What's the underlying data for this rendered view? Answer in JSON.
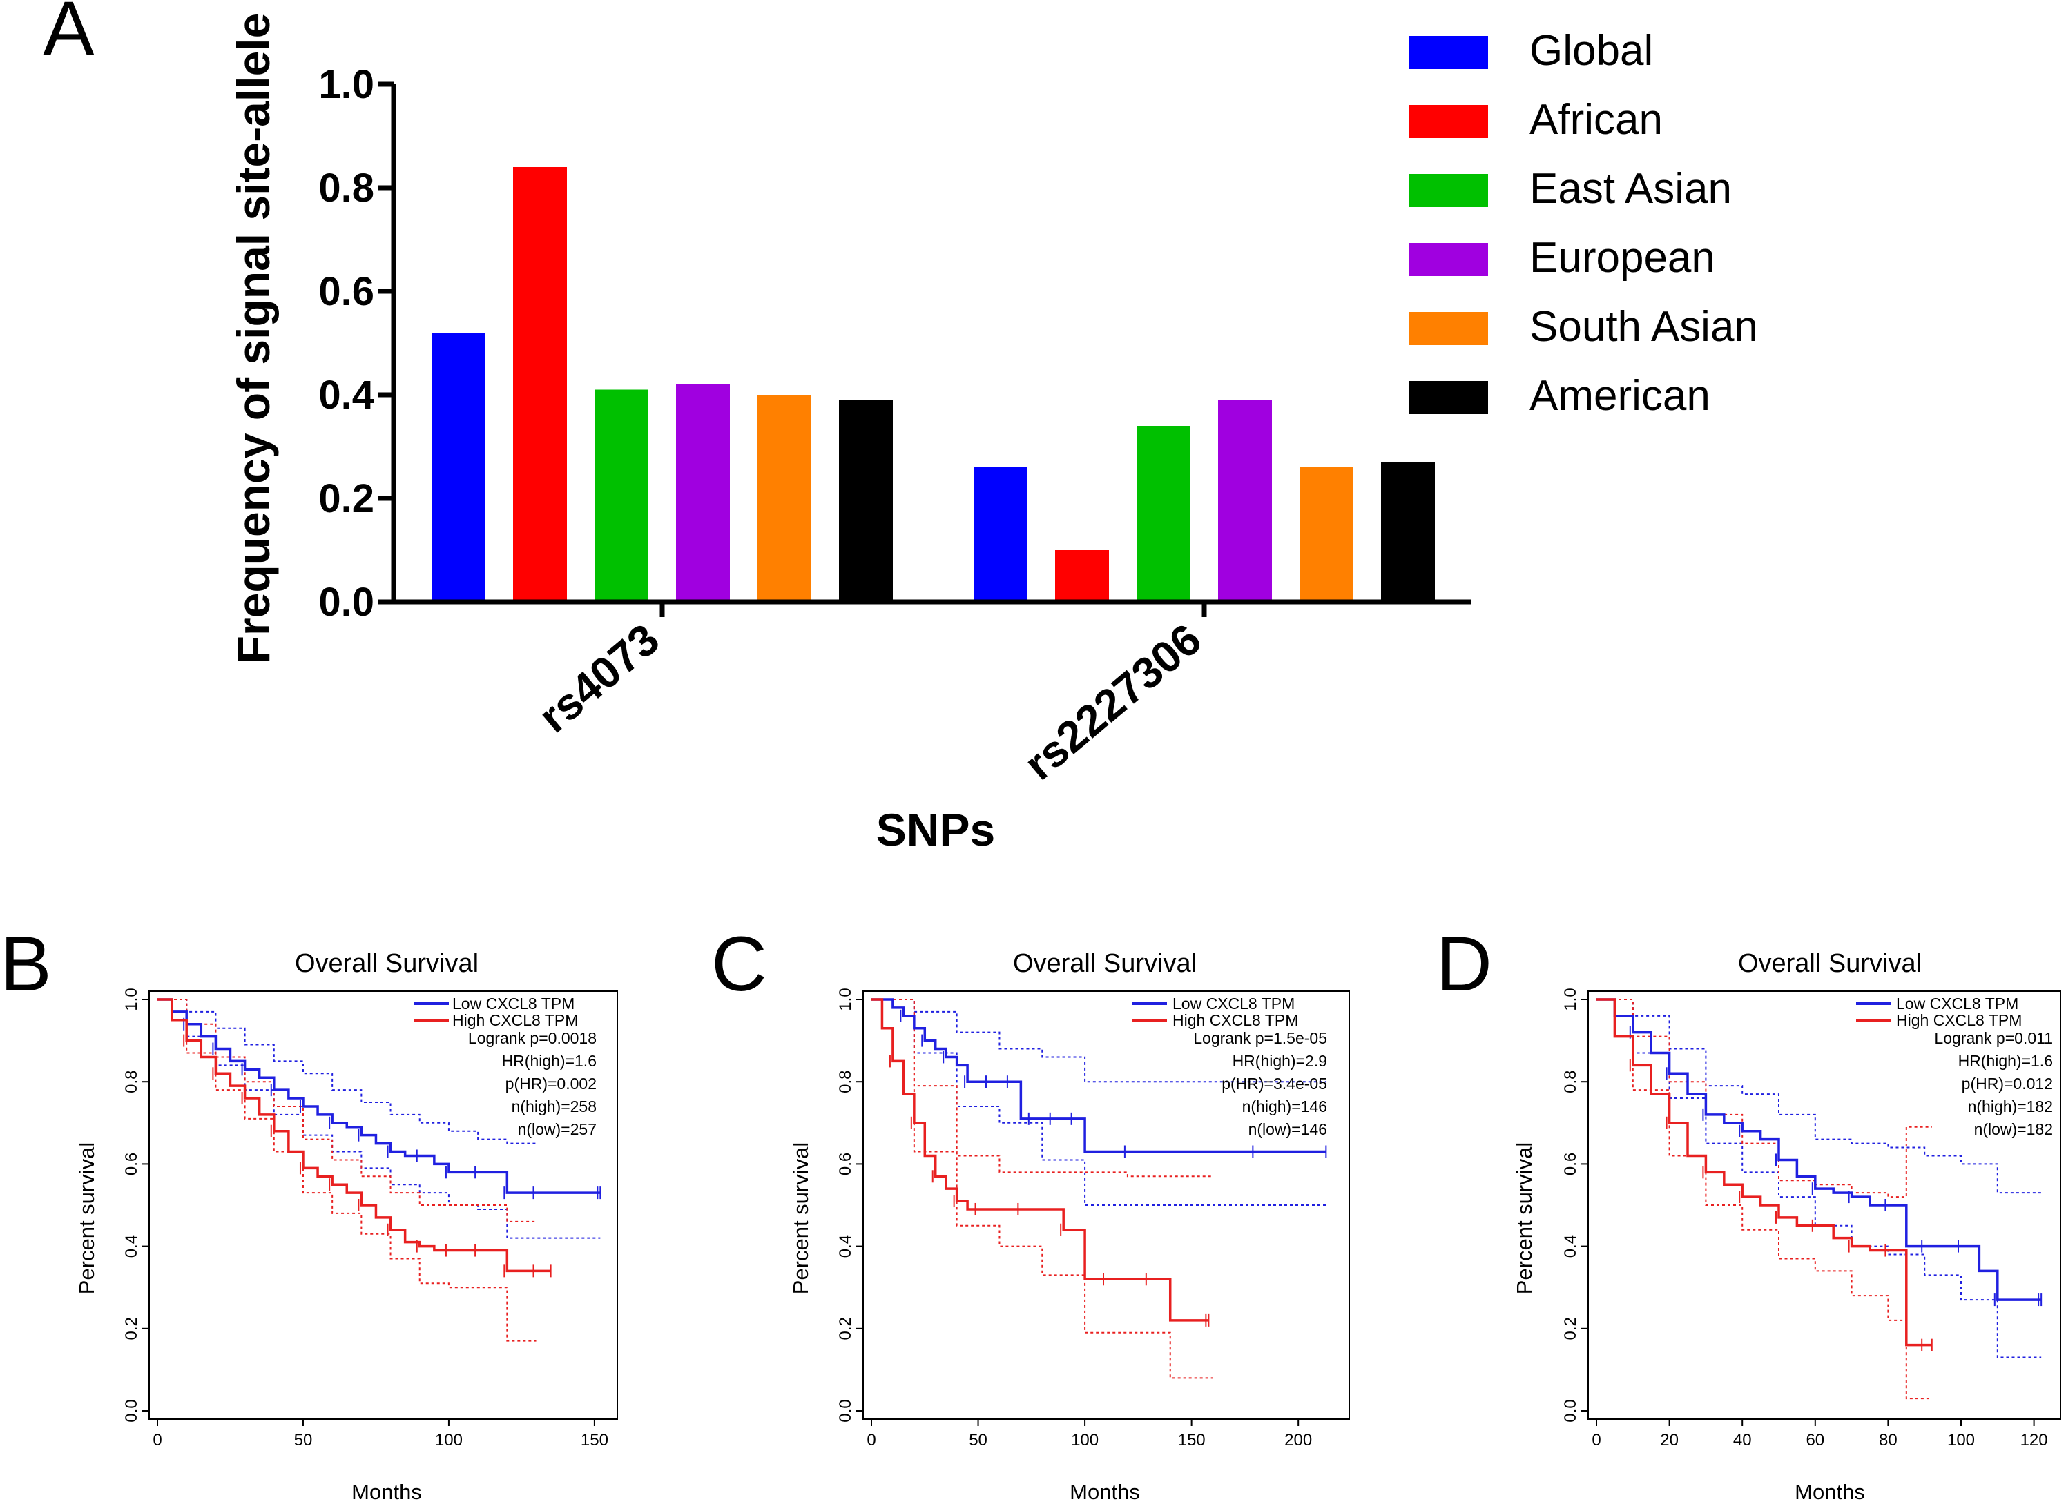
{
  "colors": {
    "global": "#0000ff",
    "african": "#ff0000",
    "east_asian": "#00c000",
    "european": "#a000e0",
    "south_asian": "#ff8000",
    "american": "#000000",
    "km_low": "#2020e0",
    "km_high": "#e82020"
  },
  "chart_data": [
    {
      "panel": "A",
      "type": "bar",
      "categories": [
        "rs4073",
        "rs2227306"
      ],
      "series": [
        {
          "name": "Global",
          "values": [
            0.52,
            0.26
          ]
        },
        {
          "name": "African",
          "values": [
            0.84,
            0.1
          ]
        },
        {
          "name": "East Asian",
          "values": [
            0.41,
            0.34
          ]
        },
        {
          "name": "European",
          "values": [
            0.42,
            0.39
          ]
        },
        {
          "name": "South Asian",
          "values": [
            0.4,
            0.26
          ]
        },
        {
          "name": "American",
          "values": [
            0.39,
            0.27
          ]
        }
      ],
      "ylabel": "Frequency of signal site-allele",
      "xlabel": "SNPs",
      "ylim": [
        0,
        1.0
      ],
      "yticks": [
        "0.0",
        "0.2",
        "0.4",
        "0.6",
        "0.8",
        "1.0"
      ],
      "legend": "right"
    },
    {
      "panel": "B",
      "type": "line",
      "title": "Overall Survival",
      "xlabel": "Months",
      "ylabel": "Percent survival",
      "xlim": [
        0,
        155
      ],
      "ylim": [
        0,
        1.0
      ],
      "xticks": [
        "0",
        "50",
        "100",
        "150"
      ],
      "yticks": [
        "0.0",
        "0.2",
        "0.4",
        "0.6",
        "0.8",
        "1.0"
      ],
      "legend_entries": [
        "Low CXCL8 TPM",
        "High CXCL8 TPM"
      ],
      "stats": [
        "Logrank p=0.0018",
        "HR(high)=1.6",
        "p(HR)=0.002",
        "n(high)=258",
        "n(low)=257"
      ],
      "series": [
        {
          "name": "Low CXCL8 TPM",
          "x": [
            0,
            5,
            10,
            15,
            20,
            25,
            30,
            35,
            40,
            45,
            50,
            55,
            60,
            65,
            70,
            75,
            80,
            85,
            90,
            95,
            100,
            105,
            110,
            115,
            120,
            125,
            130,
            140,
            152
          ],
          "y": [
            1.0,
            0.97,
            0.94,
            0.91,
            0.88,
            0.85,
            0.83,
            0.81,
            0.78,
            0.76,
            0.74,
            0.72,
            0.7,
            0.69,
            0.67,
            0.65,
            0.63,
            0.62,
            0.62,
            0.6,
            0.58,
            0.58,
            0.58,
            0.58,
            0.53,
            0.53,
            0.53,
            0.53,
            0.53
          ]
        },
        {
          "name": "High CXCL8 TPM",
          "x": [
            0,
            5,
            10,
            15,
            20,
            25,
            30,
            35,
            40,
            45,
            50,
            55,
            60,
            65,
            70,
            75,
            80,
            85,
            90,
            95,
            100,
            105,
            110,
            115,
            120,
            125,
            130,
            135
          ],
          "y": [
            1.0,
            0.95,
            0.9,
            0.86,
            0.82,
            0.79,
            0.76,
            0.72,
            0.68,
            0.63,
            0.59,
            0.57,
            0.55,
            0.53,
            0.5,
            0.47,
            0.44,
            0.41,
            0.4,
            0.39,
            0.39,
            0.39,
            0.39,
            0.39,
            0.34,
            0.34,
            0.34,
            0.34
          ]
        },
        {
          "name": "Low CXCL8 TPM upper",
          "x": [
            0,
            10,
            20,
            30,
            40,
            50,
            60,
            70,
            80,
            90,
            100,
            110,
            120,
            130
          ],
          "y": [
            1.0,
            0.97,
            0.93,
            0.89,
            0.85,
            0.82,
            0.78,
            0.75,
            0.72,
            0.7,
            0.68,
            0.66,
            0.65,
            0.65
          ]
        },
        {
          "name": "Low CXCL8 TPM lower",
          "x": [
            0,
            10,
            20,
            30,
            40,
            50,
            60,
            70,
            80,
            90,
            100,
            110,
            120,
            130,
            152
          ],
          "y": [
            1.0,
            0.91,
            0.84,
            0.78,
            0.72,
            0.67,
            0.63,
            0.59,
            0.55,
            0.53,
            0.5,
            0.49,
            0.42,
            0.42,
            0.42
          ]
        },
        {
          "name": "High CXCL8 TPM upper",
          "x": [
            0,
            10,
            20,
            30,
            40,
            50,
            60,
            70,
            80,
            90,
            100,
            110,
            120,
            130
          ],
          "y": [
            1.0,
            0.94,
            0.86,
            0.8,
            0.74,
            0.66,
            0.61,
            0.57,
            0.53,
            0.5,
            0.5,
            0.5,
            0.46,
            0.46
          ]
        },
        {
          "name": "High CXCL8 TPM lower",
          "x": [
            0,
            10,
            20,
            30,
            40,
            50,
            60,
            70,
            80,
            90,
            100,
            110,
            120,
            130
          ],
          "y": [
            1.0,
            0.87,
            0.78,
            0.71,
            0.63,
            0.53,
            0.48,
            0.43,
            0.37,
            0.31,
            0.3,
            0.3,
            0.17,
            0.17
          ]
        }
      ]
    },
    {
      "panel": "C",
      "type": "line",
      "title": "Overall Survival",
      "xlabel": "Months",
      "ylabel": "Percent survival",
      "xlim": [
        0,
        220
      ],
      "ylim": [
        0,
        1.0
      ],
      "xticks": [
        "0",
        "50",
        "100",
        "150",
        "200"
      ],
      "yticks": [
        "0.0",
        "0.2",
        "0.4",
        "0.6",
        "0.8",
        "1.0"
      ],
      "legend_entries": [
        "Low CXCL8 TPM",
        "High CXCL8 TPM"
      ],
      "stats": [
        "Logrank p=1.5e-05",
        "HR(high)=2.9",
        "p(HR)=3.4e-05",
        "n(high)=146",
        "n(low)=146"
      ],
      "series": [
        {
          "name": "Low CXCL8 TPM",
          "x": [
            0,
            10,
            15,
            20,
            25,
            30,
            35,
            40,
            45,
            50,
            55,
            60,
            65,
            70,
            75,
            80,
            85,
            90,
            95,
            100,
            120,
            150,
            180,
            213
          ],
          "y": [
            1.0,
            0.98,
            0.96,
            0.93,
            0.9,
            0.88,
            0.86,
            0.84,
            0.8,
            0.8,
            0.8,
            0.8,
            0.8,
            0.71,
            0.71,
            0.71,
            0.71,
            0.71,
            0.71,
            0.63,
            0.63,
            0.63,
            0.63,
            0.63
          ]
        },
        {
          "name": "High CXCL8 TPM",
          "x": [
            0,
            5,
            10,
            15,
            20,
            25,
            30,
            35,
            40,
            45,
            50,
            60,
            70,
            80,
            90,
            100,
            110,
            120,
            130,
            140,
            158
          ],
          "y": [
            1.0,
            0.93,
            0.85,
            0.77,
            0.7,
            0.62,
            0.57,
            0.54,
            0.51,
            0.49,
            0.49,
            0.49,
            0.49,
            0.49,
            0.44,
            0.32,
            0.32,
            0.32,
            0.32,
            0.22,
            0.22
          ]
        },
        {
          "name": "Low CXCL8 TPM upper",
          "x": [
            0,
            20,
            40,
            60,
            80,
            100,
            130,
            180,
            213
          ],
          "y": [
            1.0,
            0.97,
            0.92,
            0.88,
            0.86,
            0.8,
            0.8,
            0.8,
            0.8
          ]
        },
        {
          "name": "Low CXCL8 TPM lower",
          "x": [
            0,
            20,
            40,
            60,
            80,
            100,
            130,
            180,
            213
          ],
          "y": [
            1.0,
            0.87,
            0.74,
            0.7,
            0.61,
            0.5,
            0.5,
            0.5,
            0.5
          ]
        },
        {
          "name": "High CXCL8 TPM upper",
          "x": [
            0,
            20,
            40,
            60,
            80,
            100,
            120,
            140,
            160
          ],
          "y": [
            1.0,
            0.79,
            0.62,
            0.58,
            0.58,
            0.58,
            0.57,
            0.57,
            0.57
          ]
        },
        {
          "name": "High CXCL8 TPM lower",
          "x": [
            0,
            20,
            40,
            60,
            80,
            100,
            120,
            140,
            160
          ],
          "y": [
            1.0,
            0.63,
            0.45,
            0.4,
            0.33,
            0.19,
            0.19,
            0.08,
            0.08
          ]
        }
      ]
    },
    {
      "panel": "D",
      "type": "line",
      "title": "Overall Survival",
      "xlabel": "Months",
      "ylabel": "Percent survival",
      "xlim": [
        0,
        125
      ],
      "ylim": [
        0,
        1.0
      ],
      "xticks": [
        "0",
        "20",
        "40",
        "60",
        "80",
        "100",
        "120"
      ],
      "yticks": [
        "0.0",
        "0.2",
        "0.4",
        "0.6",
        "0.8",
        "1.0"
      ],
      "legend_entries": [
        "Low CXCL8 TPM",
        "High CXCL8 TPM"
      ],
      "stats": [
        "Logrank p=0.011",
        "HR(high)=1.6",
        "p(HR)=0.012",
        "n(high)=182",
        "n(low)=182"
      ],
      "series": [
        {
          "name": "Low CXCL8 TPM",
          "x": [
            0,
            5,
            10,
            15,
            20,
            25,
            30,
            35,
            40,
            45,
            50,
            55,
            60,
            65,
            70,
            75,
            80,
            85,
            90,
            95,
            100,
            105,
            110,
            115,
            122
          ],
          "y": [
            1.0,
            0.96,
            0.92,
            0.87,
            0.82,
            0.77,
            0.72,
            0.7,
            0.68,
            0.66,
            0.61,
            0.57,
            0.54,
            0.53,
            0.52,
            0.5,
            0.5,
            0.4,
            0.4,
            0.4,
            0.4,
            0.34,
            0.27,
            0.27,
            0.27
          ]
        },
        {
          "name": "High CXCL8 TPM",
          "x": [
            0,
            5,
            10,
            15,
            20,
            25,
            30,
            35,
            40,
            45,
            50,
            55,
            60,
            65,
            70,
            75,
            80,
            85,
            90,
            92
          ],
          "y": [
            1.0,
            0.91,
            0.84,
            0.77,
            0.7,
            0.62,
            0.58,
            0.55,
            0.52,
            0.5,
            0.47,
            0.45,
            0.45,
            0.42,
            0.4,
            0.39,
            0.39,
            0.16,
            0.16,
            0.16
          ]
        },
        {
          "name": "Low CXCL8 TPM upper",
          "x": [
            0,
            10,
            20,
            30,
            40,
            50,
            60,
            70,
            80,
            90,
            100,
            110,
            122
          ],
          "y": [
            1.0,
            0.96,
            0.88,
            0.79,
            0.77,
            0.72,
            0.66,
            0.65,
            0.64,
            0.62,
            0.6,
            0.53,
            0.53
          ]
        },
        {
          "name": "Low CXCL8 TPM lower",
          "x": [
            0,
            10,
            20,
            30,
            40,
            50,
            60,
            70,
            80,
            90,
            100,
            110,
            122
          ],
          "y": [
            1.0,
            0.87,
            0.76,
            0.65,
            0.58,
            0.52,
            0.45,
            0.4,
            0.38,
            0.33,
            0.27,
            0.13,
            0.13
          ]
        },
        {
          "name": "High CXCL8 TPM upper",
          "x": [
            0,
            10,
            20,
            30,
            40,
            50,
            60,
            70,
            80,
            85,
            92
          ],
          "y": [
            1.0,
            0.91,
            0.8,
            0.72,
            0.65,
            0.56,
            0.55,
            0.53,
            0.52,
            0.69,
            0.69
          ]
        },
        {
          "name": "High CXCL8 TPM lower",
          "x": [
            0,
            10,
            20,
            30,
            40,
            50,
            60,
            70,
            80,
            85,
            92
          ],
          "y": [
            1.0,
            0.78,
            0.62,
            0.5,
            0.44,
            0.37,
            0.34,
            0.28,
            0.22,
            0.03,
            0.03
          ]
        }
      ]
    }
  ]
}
